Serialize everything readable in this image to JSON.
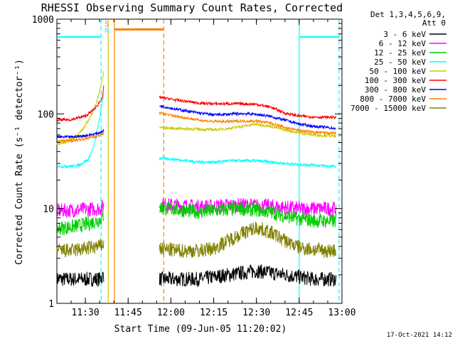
{
  "chart_data": {
    "type": "line",
    "title": "RHESSI Observing Summary Count Rates, Corrected",
    "xlabel": "Start Time (09-Jun-05 11:20:02)",
    "ylabel": "Corrected Count Rate (s⁻¹ detector⁻¹)",
    "yscale": "log",
    "ylim": [
      1,
      1000
    ],
    "xlim_minutes": [
      0,
      100
    ],
    "x_ticks": [
      {
        "minutes": 10,
        "label": "11:30"
      },
      {
        "minutes": 25,
        "label": "11:45"
      },
      {
        "minutes": 40,
        "label": "12:00"
      },
      {
        "minutes": 55,
        "label": "12:15"
      },
      {
        "minutes": 70,
        "label": "12:30"
      },
      {
        "minutes": 85,
        "label": "12:45"
      },
      {
        "minutes": 100,
        "label": "13:00"
      }
    ],
    "y_ticks": [
      {
        "value": 1,
        "label": "1"
      },
      {
        "value": 10,
        "label": "10"
      },
      {
        "value": 100,
        "label": "100"
      },
      {
        "value": 1000,
        "label": "1000"
      }
    ],
    "legend": {
      "position": "right",
      "header": [
        "Det 1,3,4,5,6,9,",
        "Att 0"
      ]
    },
    "series": [
      {
        "name": "3 - 6 keV",
        "color": "#000000",
        "x": [
          0,
          5,
          10,
          15,
          16.5,
          36,
          42,
          50,
          55,
          60,
          65,
          70,
          75,
          80,
          85,
          90,
          95,
          98
        ],
        "y": [
          1.8,
          1.8,
          1.8,
          1.8,
          2.0,
          1.8,
          1.8,
          1.8,
          1.9,
          2.0,
          2.1,
          2.2,
          2.1,
          2.0,
          1.9,
          1.8,
          1.8,
          1.8
        ]
      },
      {
        "name": "6 - 12 keV",
        "color": "#ff00ff",
        "x": [
          0,
          5,
          10,
          15,
          16.5,
          36,
          42,
          50,
          55,
          60,
          65,
          70,
          75,
          80,
          85,
          90,
          95,
          98
        ],
        "y": [
          9.5,
          9.6,
          9.8,
          10.0,
          10.8,
          11.0,
          10.8,
          10.5,
          10.6,
          10.8,
          10.9,
          10.8,
          10.6,
          10.3,
          10.0,
          10.0,
          10.0,
          10.0
        ]
      },
      {
        "name": "12 - 25 keV",
        "color": "#00cc00",
        "x": [
          0,
          5,
          10,
          15,
          16.5,
          36,
          42,
          50,
          55,
          60,
          65,
          70,
          75,
          80,
          85,
          90,
          95,
          98
        ],
        "y": [
          6.2,
          6.4,
          6.8,
          7.6,
          8.5,
          10.2,
          9.8,
          9.2,
          9.5,
          9.8,
          10.0,
          9.7,
          9.2,
          8.4,
          7.8,
          7.5,
          7.4,
          7.4
        ]
      },
      {
        "name": "25 - 50 keV",
        "color": "#00ffff",
        "x": [
          0,
          5,
          8,
          11,
          13,
          15,
          16.5,
          36,
          42,
          50,
          55,
          60,
          65,
          70,
          75,
          80,
          85,
          90,
          95,
          98
        ],
        "y": [
          28,
          28,
          29,
          33,
          45,
          90,
          170,
          34,
          33,
          31,
          31,
          32,
          32,
          32,
          31,
          30,
          29,
          29,
          28,
          28
        ]
      },
      {
        "name": "50 - 100 keV",
        "color": "#cccc00",
        "x": [
          0,
          3,
          6,
          9,
          12,
          14,
          16,
          16.5,
          36,
          42,
          50,
          55,
          60,
          65,
          70,
          75,
          80,
          85,
          90,
          95,
          98
        ],
        "y": [
          48,
          50,
          56,
          68,
          95,
          135,
          230,
          290,
          72,
          70,
          69,
          68,
          70,
          74,
          78,
          74,
          68,
          63,
          60,
          59,
          58
        ]
      },
      {
        "name": "100 - 300 keV",
        "color": "#ff0000",
        "x": [
          0,
          5,
          10,
          12,
          14,
          16,
          16.5,
          36,
          42,
          50,
          55,
          60,
          65,
          70,
          75,
          80,
          85,
          90,
          95,
          98
        ],
        "y": [
          86,
          87,
          95,
          105,
          120,
          150,
          200,
          150,
          140,
          130,
          128,
          128,
          128,
          126,
          118,
          102,
          95,
          93,
          92,
          92
        ]
      },
      {
        "name": "300 - 800 keV",
        "color": "#0000ff",
        "x": [
          0,
          5,
          10,
          14,
          16.5,
          36,
          42,
          50,
          55,
          60,
          65,
          70,
          75,
          80,
          85,
          90,
          95,
          98
        ],
        "y": [
          57,
          57,
          59,
          62,
          66,
          122,
          112,
          102,
          98,
          99,
          101,
          99,
          94,
          86,
          78,
          74,
          72,
          70
        ]
      },
      {
        "name": "800 - 7000 keV",
        "color": "#ff8000",
        "x": [
          0,
          5,
          10,
          14,
          16.5,
          36,
          42,
          50,
          55,
          60,
          65,
          70,
          75,
          80,
          85,
          90,
          95,
          98
        ],
        "y": [
          52,
          52,
          55,
          58,
          62,
          102,
          94,
          86,
          83,
          83,
          84,
          84,
          80,
          72,
          67,
          64,
          63,
          62
        ]
      },
      {
        "name": "7000 - 15000 keV",
        "color": "#808000",
        "x": [
          0,
          5,
          10,
          15,
          16.5,
          36,
          42,
          50,
          55,
          60,
          65,
          70,
          75,
          80,
          85,
          90,
          95,
          98
        ],
        "y": [
          3.6,
          3.6,
          3.8,
          4.0,
          4.3,
          3.8,
          3.6,
          3.6,
          3.8,
          4.6,
          5.5,
          6.3,
          5.6,
          4.6,
          3.9,
          3.7,
          3.6,
          3.6
        ]
      }
    ],
    "annotations": [
      {
        "kind": "hline",
        "color": "#00ffff",
        "x0": 0,
        "x1": 15.5,
        "y": 650
      },
      {
        "kind": "hline",
        "color": "#00ffff",
        "x0": 85,
        "x1": 99,
        "y": 650
      },
      {
        "kind": "vline",
        "color": "#00ffff",
        "x": 15.5,
        "style": "dashed"
      },
      {
        "kind": "vline",
        "color": "#00ffff",
        "x": 85,
        "style": "solid"
      },
      {
        "kind": "vline",
        "color": "#00ffff",
        "x": 99,
        "style": "dashed"
      },
      {
        "kind": "vline",
        "color": "#ff8000",
        "x": 20.2,
        "style": "solid"
      },
      {
        "kind": "vline",
        "color": "#ff8000",
        "x": 37.5,
        "style": "dashed"
      },
      {
        "kind": "hline",
        "color": "#ff8000",
        "x0": 20.2,
        "x1": 37.5,
        "y": 780,
        "width": 3
      },
      {
        "kind": "vline",
        "color": "#cccc00",
        "x": 18,
        "style": "solid"
      },
      {
        "kind": "label",
        "text": "S",
        "color": "#ff8000",
        "x": 17.5,
        "y": 840
      },
      {
        "kind": "label",
        "text": "N",
        "color": "#00ffff",
        "x": 17.5,
        "y": 720
      }
    ]
  },
  "footer": {
    "timestamp": "17-Oct-2021 14:12"
  }
}
